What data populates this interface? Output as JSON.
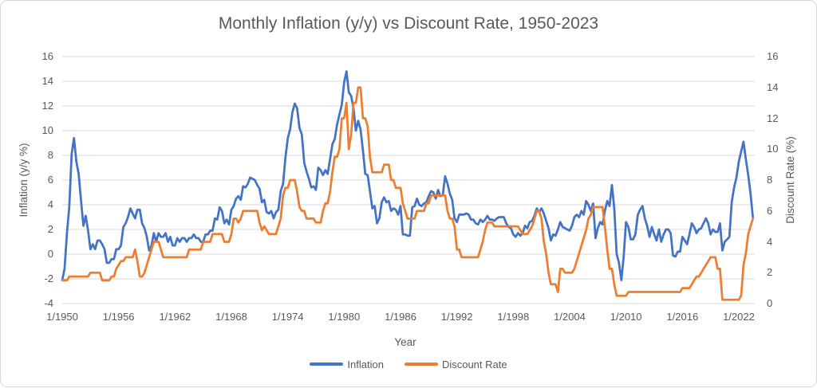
{
  "title": "Monthly Inflation (y/y) vs Discount Rate, 1950-2023",
  "axes": {
    "x": {
      "title": "Year",
      "tick_years": [
        1950,
        1956,
        1962,
        1968,
        1974,
        1980,
        1986,
        1992,
        1998,
        2004,
        2010,
        2016,
        2022
      ],
      "tick_labels": [
        "1/1950",
        "1/1956",
        "1/1962",
        "1/1968",
        "1/1974",
        "1/1980",
        "1/1986",
        "1/1992",
        "1/1998",
        "1/2004",
        "1/2010",
        "1/2016",
        "1/2022"
      ]
    },
    "y_left": {
      "title": "Inflation (y/y %)",
      "min": -4,
      "max": 16,
      "ticks": [
        16,
        14,
        12,
        10,
        8,
        6,
        4,
        2,
        0,
        -2,
        -4
      ]
    },
    "y_right": {
      "title": "Discount Rate (%)",
      "min": 0,
      "max": 16,
      "ticks": [
        16,
        14,
        12,
        10,
        8,
        6,
        4,
        2,
        0
      ]
    }
  },
  "legend": [
    {
      "label": "Inflation",
      "color": "#4472C4"
    },
    {
      "label": "Discount Rate",
      "color": "#ED7D31"
    }
  ],
  "colors": {
    "text": "#595959",
    "grid": "#D9D9D9",
    "border": "#D9D9D9",
    "background": "#FFFFFF",
    "inflation": "#4472C4",
    "discount_rate": "#ED7D31"
  },
  "chart_data": {
    "type": "line",
    "title": "Monthly Inflation (y/y) vs Discount Rate, 1950-2023",
    "xlabel": "Year",
    "ylabel_left": "Inflation (y/y %)",
    "ylabel_right": "Discount Rate (%)",
    "x_start": 1950,
    "x_step": 0.25,
    "x_min": 1950,
    "x_max": 2023.7,
    "y_left_range": [
      -4,
      16
    ],
    "y_right_range": [
      0,
      16
    ],
    "grid": "horizontal",
    "legend_position": "bottom",
    "series": [
      {
        "name": "Inflation",
        "axis": "left",
        "color": "#4472C4",
        "values": [
          -2.1,
          -1.2,
          1.7,
          3.8,
          8.1,
          9.4,
          7.5,
          6.5,
          4.3,
          2.3,
          3.1,
          1.9,
          0.4,
          0.8,
          0.4,
          1.1,
          1.1,
          0.8,
          0.4,
          -0.7,
          -0.7,
          -0.4,
          -0.4,
          0.4,
          0.4,
          0.7,
          2.2,
          2.5,
          3.0,
          3.7,
          3.3,
          2.9,
          3.6,
          3.6,
          2.5,
          2.1,
          1.4,
          0.3,
          0.7,
          1.7,
          1.0,
          1.7,
          1.4,
          1.4,
          1.7,
          1.0,
          1.4,
          0.7,
          0.7,
          1.3,
          1.0,
          1.3,
          1.3,
          1.0,
          1.3,
          1.3,
          1.6,
          1.3,
          1.3,
          1.0,
          1.0,
          1.6,
          1.6,
          1.9,
          1.9,
          2.9,
          2.8,
          3.8,
          3.5,
          2.5,
          2.8,
          2.4,
          3.6,
          3.9,
          4.5,
          4.7,
          4.4,
          5.5,
          5.4,
          5.7,
          6.2,
          6.1,
          6.0,
          5.6,
          5.3,
          4.2,
          4.4,
          3.4,
          3.3,
          3.5,
          2.9,
          3.4,
          3.6,
          5.1,
          5.7,
          7.8,
          9.4,
          10.1,
          11.5,
          12.2,
          11.8,
          10.2,
          9.7,
          7.4,
          6.7,
          6.1,
          5.4,
          5.5,
          5.2,
          7.0,
          6.8,
          6.4,
          6.8,
          6.5,
          7.7,
          8.9,
          9.3,
          10.5,
          11.3,
          12.1,
          13.9,
          14.8,
          13.1,
          12.8,
          11.8,
          10.0,
          10.8,
          10.1,
          8.4,
          6.5,
          6.4,
          5.1,
          3.7,
          3.9,
          2.5,
          2.9,
          4.2,
          4.6,
          4.2,
          4.3,
          3.5,
          3.7,
          3.6,
          3.2,
          3.9,
          1.6,
          1.6,
          1.5,
          1.5,
          3.8,
          3.9,
          4.5,
          4.0,
          3.9,
          4.1,
          4.2,
          4.7,
          5.1,
          5.0,
          4.5,
          5.2,
          4.7,
          4.8,
          6.3,
          5.7,
          4.9,
          4.4,
          2.9,
          2.6,
          3.2,
          3.2,
          3.2,
          3.3,
          3.2,
          2.8,
          2.8,
          2.5,
          2.4,
          2.8,
          2.6,
          2.8,
          3.1,
          2.8,
          2.8,
          2.7,
          2.9,
          3.0,
          3.0,
          3.0,
          2.5,
          2.2,
          2.1,
          1.6,
          1.4,
          1.7,
          1.5,
          1.7,
          2.3,
          2.1,
          2.6,
          2.7,
          3.1,
          3.7,
          3.4,
          3.7,
          3.3,
          2.7,
          2.1,
          1.1,
          1.6,
          1.5,
          2.0,
          2.6,
          2.2,
          2.1,
          2.0,
          1.9,
          2.3,
          3.0,
          3.2,
          3.0,
          3.5,
          3.2,
          4.3,
          4.0,
          3.5,
          4.1,
          1.3,
          2.1,
          2.6,
          2.4,
          3.5,
          4.3,
          3.9,
          5.6,
          3.7,
          0.0,
          -0.7,
          -2.1,
          -0.2,
          2.6,
          2.2,
          1.2,
          1.2,
          1.6,
          3.2,
          3.6,
          3.9,
          2.9,
          2.3,
          1.4,
          2.2,
          1.6,
          1.1,
          2.0,
          1.0,
          1.6,
          2.0,
          2.0,
          1.7,
          -0.1,
          -0.2,
          0.2,
          0.2,
          1.4,
          1.1,
          0.8,
          1.6,
          2.5,
          2.2,
          1.7,
          2.0,
          2.1,
          2.5,
          2.9,
          2.5,
          1.6,
          2.0,
          1.8,
          1.8,
          2.5,
          0.3,
          1.0,
          1.2,
          1.4,
          4.2,
          5.4,
          6.2,
          7.5,
          8.3,
          9.1,
          7.7,
          6.4,
          4.9,
          3.0
        ]
      },
      {
        "name": "Discount Rate",
        "axis": "right",
        "color": "#ED7D31",
        "values": [
          1.5,
          1.5,
          1.5,
          1.75,
          1.75,
          1.75,
          1.75,
          1.75,
          1.75,
          1.75,
          1.75,
          1.75,
          2.0,
          2.0,
          2.0,
          2.0,
          2.0,
          1.5,
          1.5,
          1.5,
          1.5,
          1.75,
          1.75,
          2.25,
          2.5,
          2.75,
          2.75,
          3.0,
          3.0,
          3.0,
          3.0,
          3.5,
          2.75,
          1.75,
          1.75,
          2.0,
          2.5,
          3.0,
          3.5,
          4.0,
          4.0,
          4.0,
          3.5,
          3.0,
          3.0,
          3.0,
          3.0,
          3.0,
          3.0,
          3.0,
          3.0,
          3.0,
          3.0,
          3.0,
          3.5,
          3.5,
          3.5,
          3.5,
          3.5,
          3.5,
          4.0,
          4.0,
          4.0,
          4.0,
          4.5,
          4.5,
          4.5,
          4.5,
          4.5,
          4.0,
          4.0,
          4.0,
          4.5,
          5.5,
          5.5,
          5.25,
          5.5,
          6.0,
          6.0,
          6.0,
          6.0,
          6.0,
          6.0,
          6.0,
          5.25,
          4.75,
          5.0,
          4.75,
          4.5,
          4.5,
          4.5,
          4.5,
          5.0,
          5.5,
          7.0,
          7.5,
          7.5,
          8.0,
          8.0,
          8.0,
          7.25,
          6.25,
          6.0,
          6.0,
          5.5,
          5.5,
          5.5,
          5.5,
          5.25,
          5.25,
          5.25,
          6.0,
          6.5,
          6.5,
          7.25,
          8.5,
          9.5,
          9.5,
          10.0,
          12.0,
          12.0,
          13.0,
          10.0,
          11.0,
          13.0,
          13.0,
          14.0,
          14.0,
          12.0,
          12.0,
          11.5,
          9.5,
          8.5,
          8.5,
          8.5,
          8.5,
          8.5,
          9.0,
          9.0,
          9.0,
          8.0,
          8.0,
          7.5,
          7.5,
          7.5,
          6.5,
          6.0,
          5.5,
          5.5,
          5.5,
          5.5,
          6.0,
          6.0,
          6.0,
          6.0,
          6.5,
          6.5,
          7.0,
          7.0,
          7.0,
          7.0,
          7.0,
          7.0,
          7.0,
          6.0,
          5.5,
          5.5,
          5.0,
          3.5,
          3.5,
          3.0,
          3.0,
          3.0,
          3.0,
          3.0,
          3.0,
          3.0,
          3.0,
          3.5,
          4.0,
          4.75,
          5.25,
          5.25,
          5.25,
          5.0,
          5.0,
          5.0,
          5.0,
          5.0,
          5.0,
          5.0,
          5.0,
          5.0,
          5.0,
          5.0,
          4.75,
          4.5,
          4.5,
          4.5,
          4.75,
          5.0,
          5.5,
          6.0,
          6.0,
          5.5,
          4.0,
          3.25,
          2.0,
          1.25,
          1.25,
          1.25,
          0.75,
          2.25,
          2.25,
          2.0,
          2.0,
          2.0,
          2.0,
          2.25,
          2.75,
          3.25,
          3.75,
          4.25,
          4.75,
          5.5,
          5.75,
          6.25,
          6.25,
          6.25,
          6.25,
          6.25,
          5.0,
          3.5,
          2.25,
          2.25,
          1.25,
          0.5,
          0.5,
          0.5,
          0.5,
          0.5,
          0.75,
          0.75,
          0.75,
          0.75,
          0.75,
          0.75,
          0.75,
          0.75,
          0.75,
          0.75,
          0.75,
          0.75,
          0.75,
          0.75,
          0.75,
          0.75,
          0.75,
          0.75,
          0.75,
          0.75,
          0.75,
          0.75,
          0.75,
          1.0,
          1.0,
          1.0,
          1.0,
          1.25,
          1.5,
          1.75,
          1.75,
          2.0,
          2.25,
          2.5,
          2.75,
          3.0,
          3.0,
          3.0,
          2.25,
          2.25,
          0.25,
          0.25,
          0.25,
          0.25,
          0.25,
          0.25,
          0.25,
          0.25,
          0.5,
          2.5,
          3.25,
          4.5,
          5.0,
          5.5
        ]
      }
    ]
  }
}
